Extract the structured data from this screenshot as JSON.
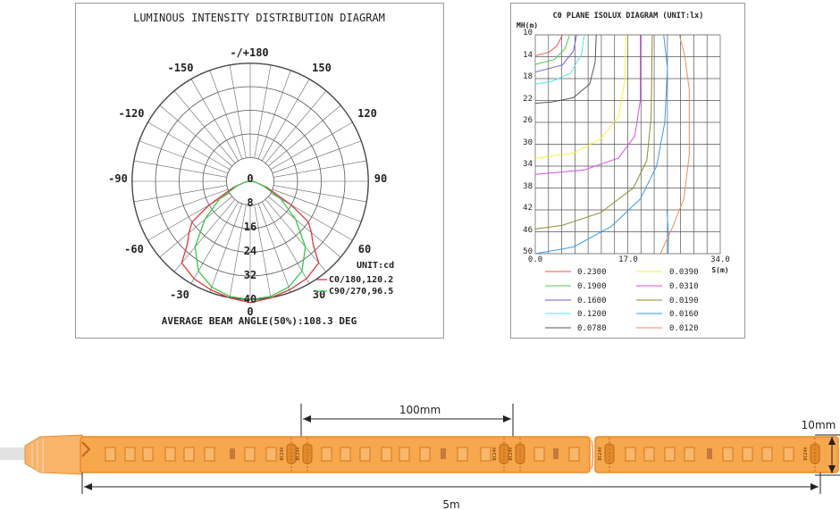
{
  "polar": {
    "title": "LUMINOUS INTENSITY DISTRIBUTION DIAGRAM",
    "angle_labels": [
      "-/+180",
      "-150",
      "150",
      "-120",
      "120",
      "-90",
      "90",
      "-60",
      "60",
      "-30",
      "30",
      "0"
    ],
    "radial_labels": [
      "0",
      "8",
      "16",
      "24",
      "32",
      "40"
    ],
    "unit": "UNIT:cd",
    "legend": [
      {
        "label": "C0/180,120.2",
        "color": "#e0383c"
      },
      {
        "label": "C90/270,96.5",
        "color": "#35c84a"
      }
    ],
    "beam_angle": "AVERAGE BEAM ANGLE(50%):108.3 DEG"
  },
  "isolux": {
    "title": "C0 PLANE ISOLUX DIAGRAM (UNIT:lx)",
    "y_axis_label": "MH(m)",
    "x_axis_label": "S(m)",
    "y_ticks": [
      "10",
      "14",
      "18",
      "22",
      "26",
      "30",
      "34",
      "38",
      "42",
      "46",
      "50"
    ],
    "x_ticks": [
      "0.0",
      "17.0",
      "34.0"
    ],
    "legend": [
      {
        "value": "0.2300",
        "color": "#ef4e4e"
      },
      {
        "value": "0.1900",
        "color": "#4ccd4c"
      },
      {
        "value": "0.1600",
        "color": "#6a5ee0"
      },
      {
        "value": "0.1200",
        "color": "#52e6e6"
      },
      {
        "value": "0.0780",
        "color": "#555555"
      },
      {
        "value": "0.0390",
        "color": "#f4f42c"
      },
      {
        "value": "0.0310",
        "color": "#d64ce0"
      },
      {
        "value": "0.0190",
        "color": "#8c8c2a"
      },
      {
        "value": "0.0160",
        "color": "#3a9ae8"
      },
      {
        "value": "0.0120",
        "color": "#ef8a5a"
      }
    ]
  },
  "strip": {
    "segment_label": "100mm",
    "width_label": "10mm",
    "length_label": "5m",
    "cut_mark_text": "DC24V",
    "strip_color": "#f7a74c",
    "strip_border": "#e88a24"
  }
}
